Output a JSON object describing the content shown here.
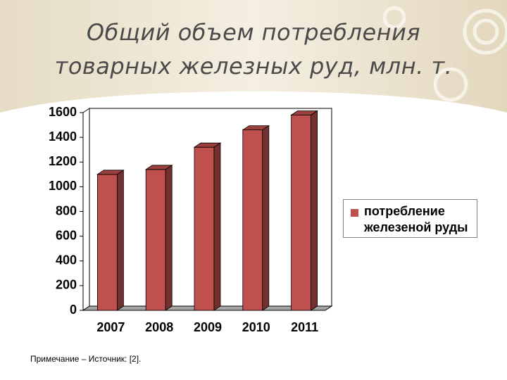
{
  "chart_data": {
    "type": "bar3d",
    "title": "Общий объем потребления товарных железных руд, млн. т.",
    "categories": [
      "2007",
      "2008",
      "2009",
      "2010",
      "2011"
    ],
    "series": [
      {
        "name": "потребление железеной руды",
        "color": "#c0504d",
        "values": [
          1100,
          1140,
          1320,
          1460,
          1580
        ]
      }
    ],
    "ylim": [
      0,
      1600
    ],
    "yticks": [
      0,
      200,
      400,
      600,
      800,
      1000,
      1200,
      1400,
      1600
    ],
    "grid": false,
    "legend": "right",
    "note": "Примечание – Источник: [2]."
  }
}
